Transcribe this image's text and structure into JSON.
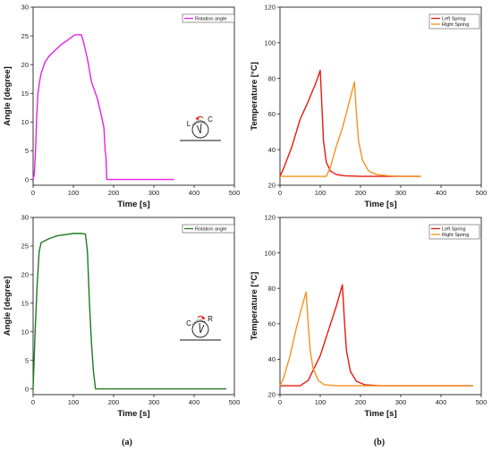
{
  "chart_data": [
    {
      "id": "a-top",
      "type": "line",
      "xlabel": "Time [s]",
      "ylabel": "Angle [degree]",
      "xlim": [
        0,
        500
      ],
      "ylim": [
        -1,
        30
      ],
      "xticks": [
        0,
        100,
        200,
        300,
        400,
        500
      ],
      "yticks": [
        0,
        5,
        10,
        15,
        20,
        25,
        30
      ],
      "legend_position": "top-right",
      "series": [
        {
          "name": "Rotation angle",
          "color": "#e81ee8",
          "points": [
            [
              0,
              0
            ],
            [
              3,
              1
            ],
            [
              6,
              5
            ],
            [
              9,
              11
            ],
            [
              12,
              15
            ],
            [
              16,
              17
            ],
            [
              20,
              18.5
            ],
            [
              30,
              20.5
            ],
            [
              40,
              21.5
            ],
            [
              55,
              22.5
            ],
            [
              70,
              23.5
            ],
            [
              85,
              24.2
            ],
            [
              100,
              25
            ],
            [
              105,
              25.2
            ],
            [
              120,
              25.2
            ],
            [
              125,
              24
            ],
            [
              135,
              21
            ],
            [
              145,
              17
            ],
            [
              160,
              14
            ],
            [
              170,
              11
            ],
            [
              176,
              9
            ],
            [
              179,
              5
            ],
            [
              181,
              4
            ],
            [
              183,
              0
            ],
            [
              186,
              0
            ],
            [
              250,
              0
            ],
            [
              350,
              0
            ]
          ]
        }
      ],
      "inset": {
        "left_label": "L",
        "right_label": "C",
        "arrow_direction": "counterclockwise"
      }
    },
    {
      "id": "b-top",
      "type": "line",
      "xlabel": "Time [s]",
      "ylabel": "Temperature [°C]",
      "xlim": [
        0,
        500
      ],
      "ylim": [
        20,
        120
      ],
      "xticks": [
        0,
        100,
        200,
        300,
        400,
        500
      ],
      "yticks": [
        20,
        40,
        60,
        80,
        100,
        120
      ],
      "legend_position": "top-right",
      "series": [
        {
          "name": "Left Spring",
          "color": "#e8190f",
          "points": [
            [
              0,
              25
            ],
            [
              10,
              30
            ],
            [
              30,
              42
            ],
            [
              50,
              57
            ],
            [
              70,
              67
            ],
            [
              90,
              78
            ],
            [
              100,
              84.5
            ],
            [
              103,
              70
            ],
            [
              108,
              45
            ],
            [
              115,
              33
            ],
            [
              125,
              28
            ],
            [
              140,
              26
            ],
            [
              160,
              25.3
            ],
            [
              200,
              25
            ],
            [
              350,
              25
            ]
          ]
        },
        {
          "name": "Right Spring",
          "color": "#f5921e",
          "points": [
            [
              0,
              25
            ],
            [
              115,
              25
            ],
            [
              125,
              30
            ],
            [
              140,
              42
            ],
            [
              155,
              52
            ],
            [
              170,
              65
            ],
            [
              185,
              78
            ],
            [
              190,
              60
            ],
            [
              195,
              45
            ],
            [
              205,
              34
            ],
            [
              220,
              28
            ],
            [
              240,
              26
            ],
            [
              270,
              25.3
            ],
            [
              300,
              25
            ],
            [
              350,
              25
            ]
          ]
        }
      ]
    },
    {
      "id": "a-bottom",
      "type": "line",
      "xlabel": "Time [s]",
      "ylabel": "Angle [degree]",
      "xlim": [
        0,
        500
      ],
      "ylim": [
        -1,
        30
      ],
      "xticks": [
        0,
        100,
        200,
        300,
        400,
        500
      ],
      "yticks": [
        0,
        5,
        10,
        15,
        20,
        25,
        30
      ],
      "legend_position": "top-right",
      "series": [
        {
          "name": "Rotation angle",
          "color": "#1e7a1e",
          "points": [
            [
              0,
              0
            ],
            [
              5,
              10
            ],
            [
              10,
              18
            ],
            [
              15,
              24
            ],
            [
              20,
              25.6
            ],
            [
              40,
              26.3
            ],
            [
              60,
              26.8
            ],
            [
              80,
              27
            ],
            [
              100,
              27.2
            ],
            [
              120,
              27.2
            ],
            [
              130,
              27.1
            ],
            [
              135,
              24
            ],
            [
              140,
              15
            ],
            [
              145,
              8
            ],
            [
              150,
              3
            ],
            [
              155,
              0
            ],
            [
              165,
              0
            ],
            [
              300,
              0
            ],
            [
              480,
              0
            ]
          ]
        }
      ],
      "inset": {
        "left_label": "C",
        "right_label": "R",
        "arrow_direction": "clockwise"
      }
    },
    {
      "id": "b-bottom",
      "type": "line",
      "xlabel": "Time [s]",
      "ylabel": "Temperature [°C]",
      "xlim": [
        0,
        500
      ],
      "ylim": [
        20,
        120
      ],
      "xticks": [
        0,
        100,
        200,
        300,
        400,
        500
      ],
      "yticks": [
        20,
        40,
        60,
        80,
        100,
        120
      ],
      "legend_position": "top-right",
      "series": [
        {
          "name": "Left Spring",
          "color": "#e8190f",
          "points": [
            [
              0,
              25
            ],
            [
              50,
              25
            ],
            [
              70,
              28
            ],
            [
              100,
              42
            ],
            [
              120,
              56
            ],
            [
              140,
              70
            ],
            [
              155,
              82
            ],
            [
              160,
              62
            ],
            [
              165,
              45
            ],
            [
              175,
              33
            ],
            [
              190,
              27.5
            ],
            [
              210,
              25.6
            ],
            [
              250,
              25
            ],
            [
              480,
              25
            ]
          ]
        },
        {
          "name": "Right Spring",
          "color": "#f5921e",
          "points": [
            [
              0,
              25
            ],
            [
              10,
              30
            ],
            [
              25,
              42
            ],
            [
              40,
              57
            ],
            [
              55,
              70
            ],
            [
              65,
              78
            ],
            [
              70,
              60
            ],
            [
              75,
              45
            ],
            [
              82,
              35
            ],
            [
              95,
              28
            ],
            [
              110,
              25.6
            ],
            [
              140,
              25
            ],
            [
              480,
              25
            ]
          ]
        }
      ]
    }
  ],
  "captions": [
    "(a)",
    "(b)"
  ]
}
